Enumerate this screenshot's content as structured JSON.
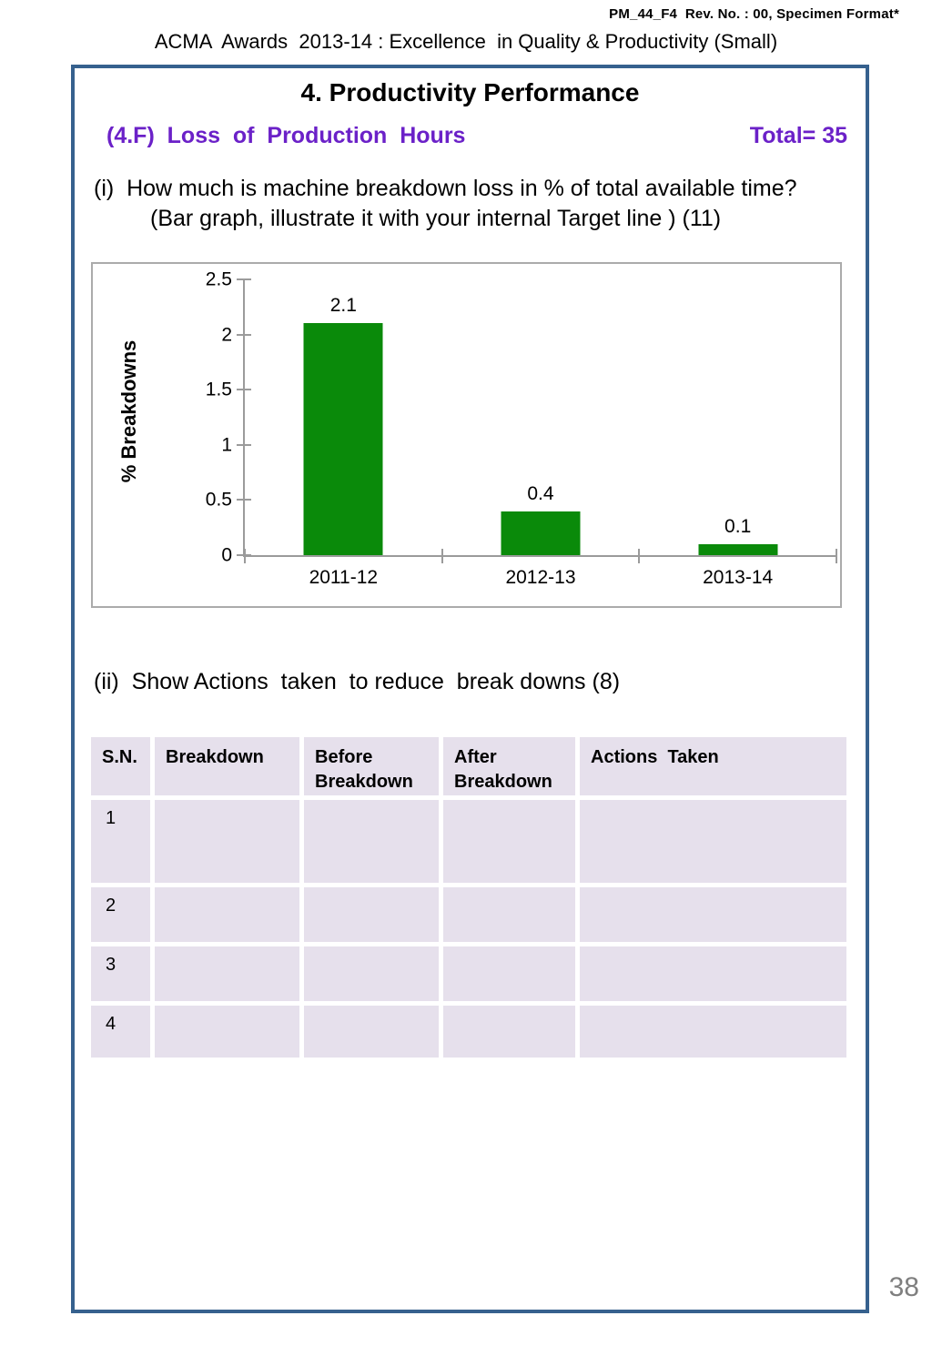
{
  "page": {
    "doc_ref": "PM_44_F4  Rev. No. : 00, Specimen Format*",
    "header_title": "ACMA  Awards  2013-14 : Excellence  in Quality & Productivity (Small)",
    "page_number": "38"
  },
  "slide": {
    "section_title": "4. Productivity Performance",
    "subsection_title": "(4.F)  Loss  of  Production  Hours",
    "total_label": "Total= 35",
    "question_i_line1": "(i)  How much is machine breakdown loss in % of total available time?",
    "question_i_line2": "(Bar graph, illustrate it with your internal Target line ) (11)",
    "question_ii": "(ii)  Show Actions  taken  to reduce  break downs (8)"
  },
  "chart_data": {
    "type": "bar",
    "title": "",
    "categories": [
      "2011-12",
      "2012-13",
      "2013-14"
    ],
    "values": [
      2.1,
      0.4,
      0.1
    ],
    "data_labels": [
      "2.1",
      "0.4",
      "0.1"
    ],
    "xlabel": "",
    "ylabel": "% Breakdowns",
    "ylim": [
      0,
      2.5
    ],
    "yticks": [
      0,
      0.5,
      1,
      1.5,
      2,
      2.5
    ],
    "ytick_labels": [
      "0",
      "0.5",
      "1",
      "1.5",
      "2",
      "2.5"
    ],
    "bar_color": "#0A8A0A",
    "grid": false,
    "legend": false
  },
  "table": {
    "headers": [
      "S.N.",
      "Breakdown",
      "Before Breakdown",
      "After Breakdown",
      "Actions  Taken"
    ],
    "rows": [
      {
        "sn": "1",
        "breakdown": "",
        "before": "",
        "after": "",
        "actions": ""
      },
      {
        "sn": "2",
        "breakdown": "",
        "before": "",
        "after": "",
        "actions": ""
      },
      {
        "sn": "3",
        "breakdown": "",
        "before": "",
        "after": "",
        "actions": ""
      },
      {
        "sn": "4",
        "breakdown": "",
        "before": "",
        "after": "",
        "actions": ""
      }
    ]
  },
  "colors": {
    "accent_purple": "#6B21C8",
    "box_border_blue": "#36618E",
    "bar_green": "#0A8A0A",
    "axis_gray": "#9B9B9B",
    "table_fill": "#E6E0EC",
    "page_number_gray": "#7F7F7F"
  }
}
